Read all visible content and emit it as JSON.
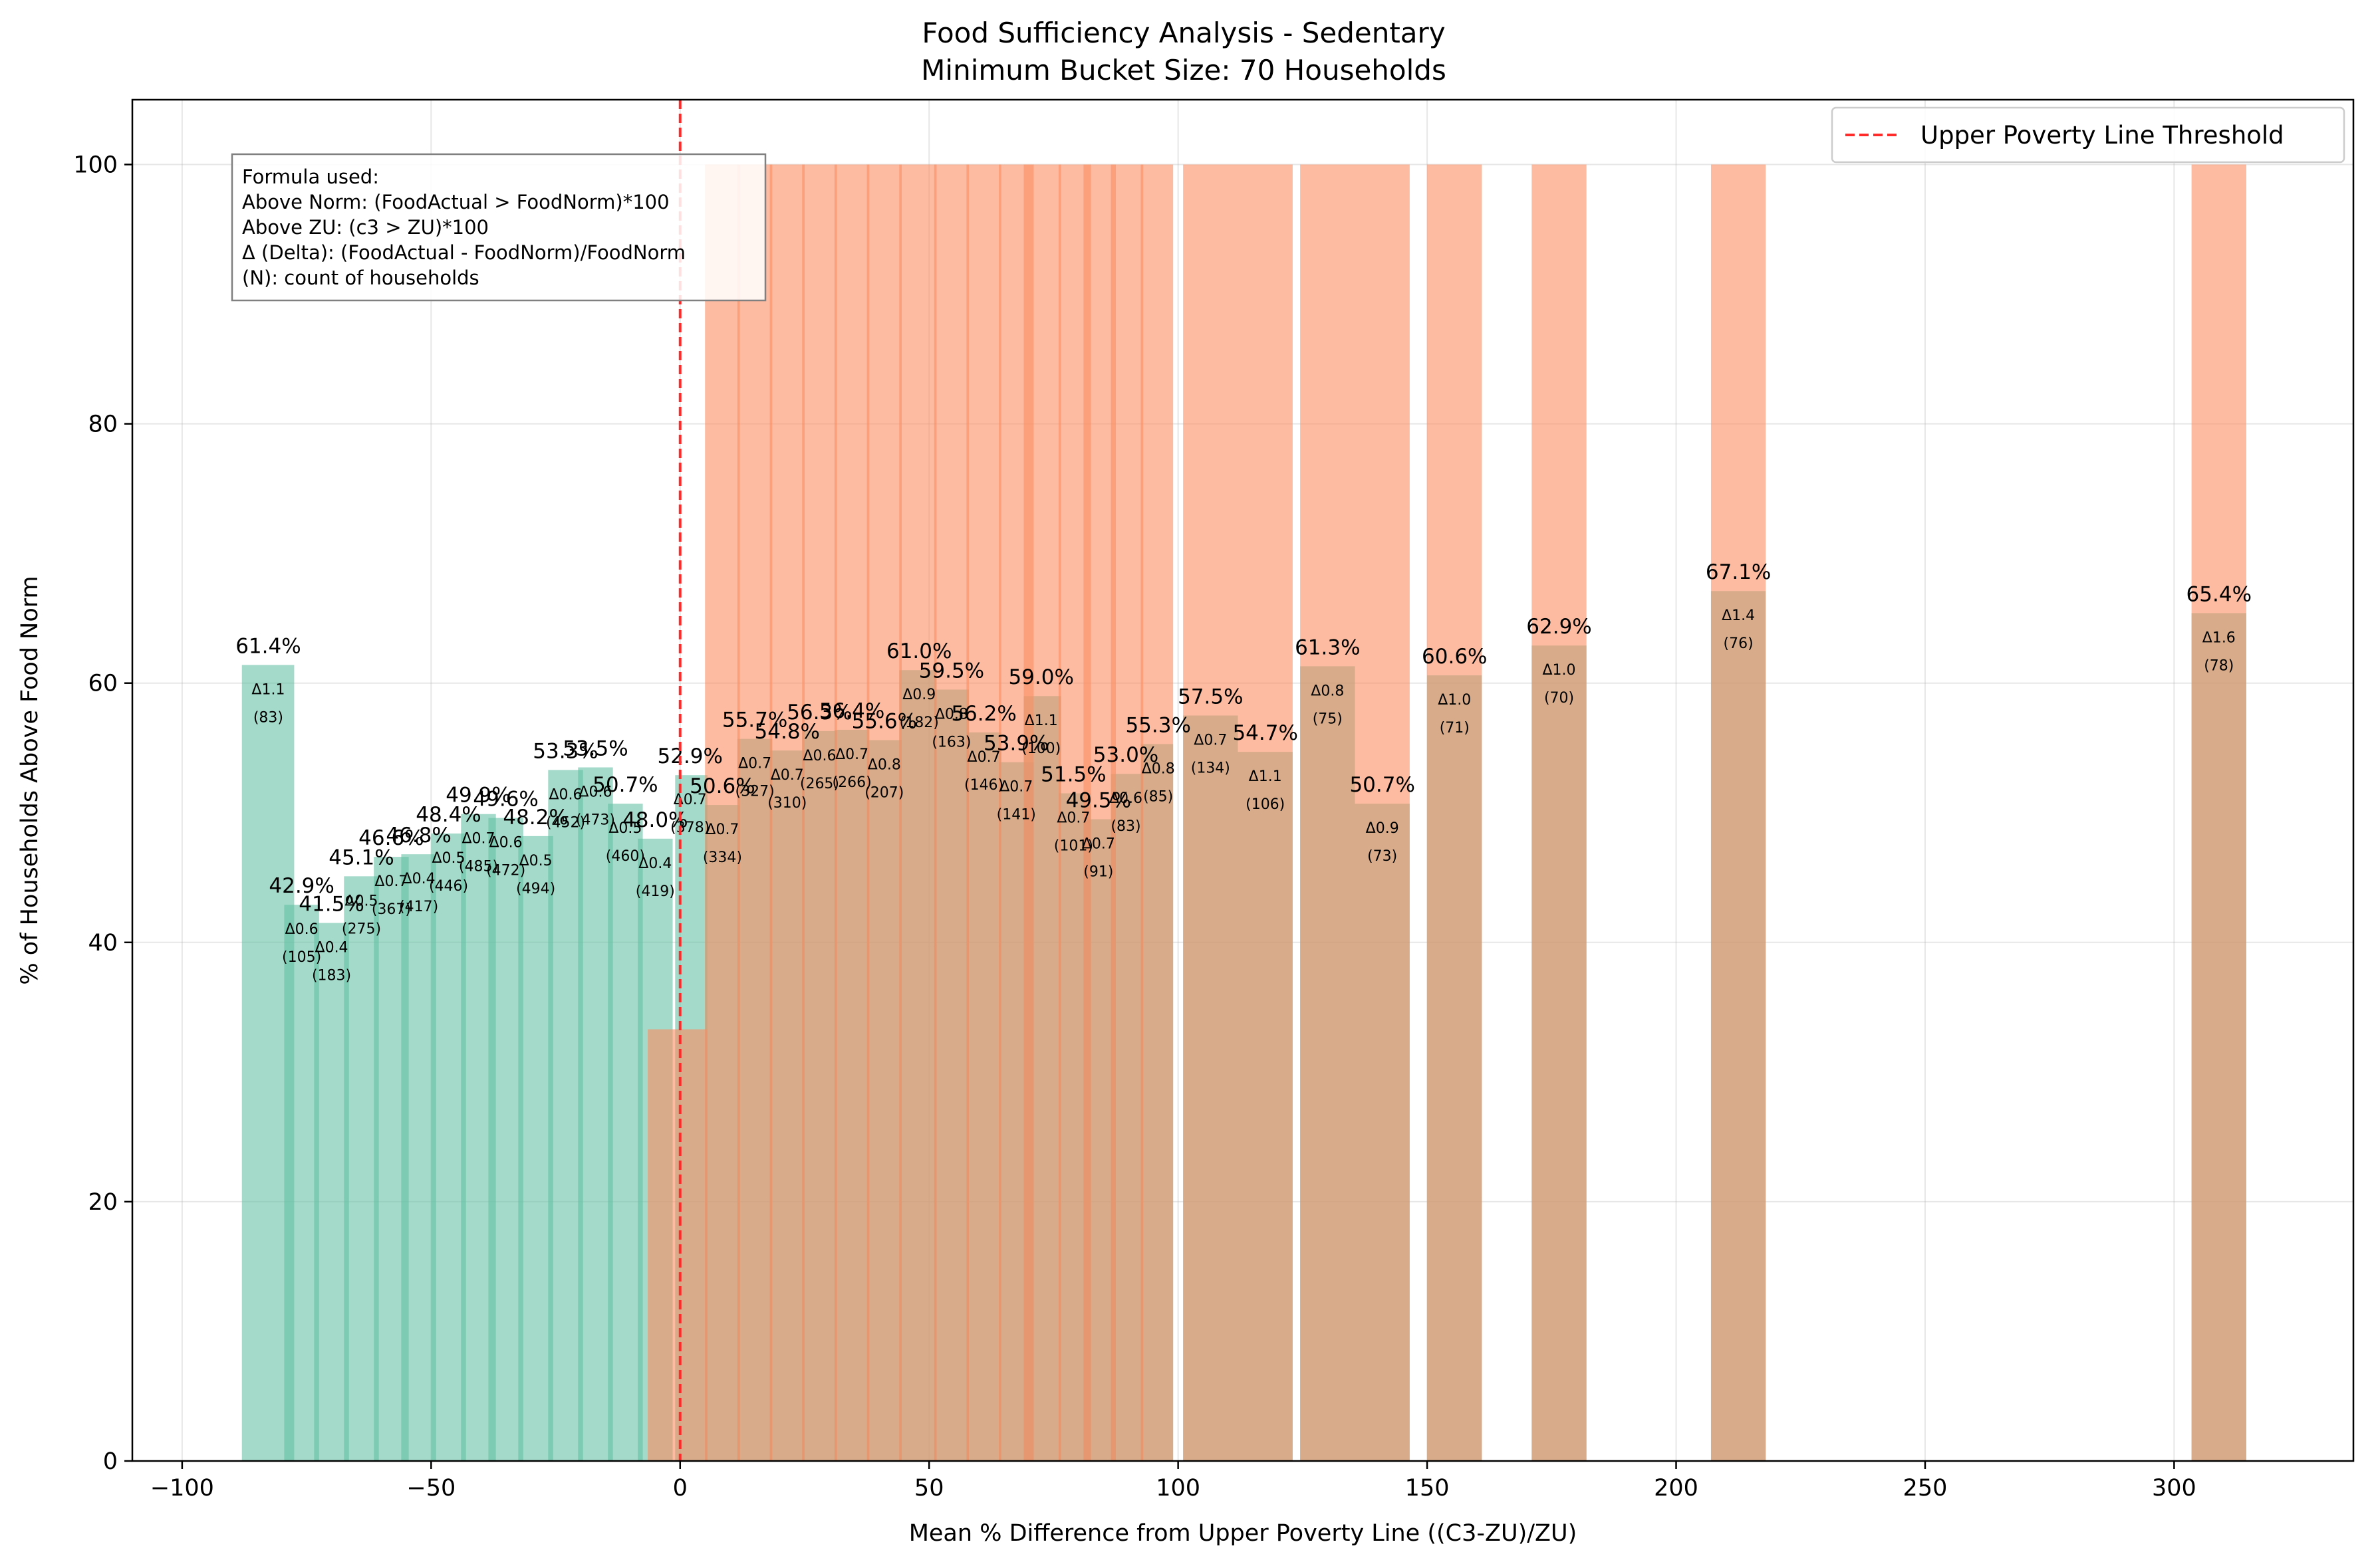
{
  "chart_data": {
    "type": "bar",
    "title": "Food Sufficiency Analysis - Sedentary",
    "subtitle": "Minimum Bucket Size: 70 Households",
    "xlabel": "Mean % Difference from Upper Poverty Line ((C3-ZU)/ZU)",
    "ylabel": "% of Households Above Food Norm",
    "xlim": [
      -110,
      336
    ],
    "ylim": [
      0,
      105
    ],
    "xticks": [
      -100,
      -50,
      0,
      50,
      100,
      150,
      200,
      250,
      300
    ],
    "xtick_labels": [
      "−100",
      "−50",
      "0",
      "50",
      "100",
      "150",
      "200",
      "250",
      "300"
    ],
    "yticks": [
      0,
      20,
      40,
      60,
      80,
      100
    ],
    "ytick_labels": [
      "0",
      "20",
      "40",
      "60",
      "80",
      "100"
    ],
    "grid": true,
    "legend_position": "top-right",
    "threshold": {
      "x": 0,
      "label": "Upper Poverty Line Threshold",
      "color": "#ff2b2b"
    },
    "formula_box": {
      "lines": [
        "Formula used:",
        "Above Norm: (FoodActual > FoodNorm)*100",
        "Above ZU: (c3 > ZU)*100",
        "Δ (Delta): (FoodActual - FoodNorm)/FoodNorm",
        "(N): count of households"
      ]
    },
    "colors": {
      "above_norm": "#66c2a5",
      "above_zu": "#fc8d62"
    },
    "series": [
      {
        "key": "above_norm",
        "points": [
          {
            "x": -82.7,
            "x0": -88.0,
            "x1": -77.5,
            "value": 61.4,
            "label": "61.4%",
            "delta": "Δ1.1",
            "n": "(83)"
          },
          {
            "x": -76.0,
            "x0": -79.5,
            "x1": -72.5,
            "value": 42.9,
            "label": "42.9%",
            "delta": "Δ0.6",
            "n": "(105)"
          },
          {
            "x": -70.0,
            "x0": -73.5,
            "x1": -66.5,
            "value": 41.5,
            "label": "41.5%",
            "delta": "Δ0.4",
            "n": "(183)"
          },
          {
            "x": -64.0,
            "x0": -67.5,
            "x1": -60.5,
            "value": 45.1,
            "label": "45.1%",
            "delta": "Δ0.5",
            "n": "(275)"
          },
          {
            "x": -58.0,
            "x0": -61.5,
            "x1": -54.5,
            "value": 46.6,
            "label": "46.6%",
            "delta": "Δ0.7",
            "n": "(367)"
          },
          {
            "x": -52.5,
            "x0": -56.0,
            "x1": -49.0,
            "value": 46.8,
            "label": "46.8%",
            "delta": "Δ0.4",
            "n": "(417)"
          },
          {
            "x": -46.5,
            "x0": -50.0,
            "x1": -43.0,
            "value": 48.4,
            "label": "48.4%",
            "delta": "Δ0.5",
            "n": "(446)"
          },
          {
            "x": -40.5,
            "x0": -44.0,
            "x1": -37.0,
            "value": 49.9,
            "label": "49.9%",
            "delta": "Δ0.7",
            "n": "(485)"
          },
          {
            "x": -35.0,
            "x0": -38.5,
            "x1": -31.5,
            "value": 49.6,
            "label": "49.6%",
            "delta": "Δ0.6",
            "n": "(472)"
          },
          {
            "x": -29.0,
            "x0": -32.5,
            "x1": -25.5,
            "value": 48.2,
            "label": "48.2%",
            "delta": "Δ0.5",
            "n": "(494)"
          },
          {
            "x": -23.0,
            "x0": -26.5,
            "x1": -19.5,
            "value": 53.3,
            "label": "53.3%",
            "delta": "Δ0.6",
            "n": "(452)"
          },
          {
            "x": -17.0,
            "x0": -20.5,
            "x1": -13.5,
            "value": 53.5,
            "label": "53.5%",
            "delta": "Δ0.6",
            "n": "(473)"
          },
          {
            "x": -11.0,
            "x0": -14.5,
            "x1": -7.5,
            "value": 50.7,
            "label": "50.7%",
            "delta": "Δ0.5",
            "n": "(460)"
          },
          {
            "x": -5.0,
            "x0": -8.5,
            "x1": -1.5,
            "value": 48.0,
            "label": "48.0%",
            "delta": "Δ0.4",
            "n": "(419)"
          },
          {
            "x": 2.0,
            "x0": -1.0,
            "x1": 5.5,
            "value": 52.9,
            "label": "52.9%",
            "delta": "Δ0.7",
            "n": "(378)"
          },
          {
            "x": 8.5,
            "x0": 5.0,
            "x1": 12.0,
            "value": 50.6,
            "label": "50.6%",
            "delta": "Δ0.7",
            "n": "(334)"
          },
          {
            "x": 15.0,
            "x0": 11.5,
            "x1": 18.5,
            "value": 55.7,
            "label": "55.7%",
            "delta": "Δ0.7",
            "n": "(327)"
          },
          {
            "x": 21.5,
            "x0": 18.0,
            "x1": 25.0,
            "value": 54.8,
            "label": "54.8%",
            "delta": "Δ0.7",
            "n": "(310)"
          },
          {
            "x": 28.0,
            "x0": 24.5,
            "x1": 31.5,
            "value": 56.3,
            "label": "56.3%",
            "delta": "Δ0.6",
            "n": "(265)"
          },
          {
            "x": 34.5,
            "x0": 31.0,
            "x1": 38.0,
            "value": 56.4,
            "label": "56.4%",
            "delta": "Δ0.7",
            "n": "(266)"
          },
          {
            "x": 41.0,
            "x0": 37.5,
            "x1": 44.5,
            "value": 55.6,
            "label": "55.6%",
            "delta": "Δ0.8",
            "n": "(207)"
          },
          {
            "x": 48.0,
            "x0": 44.0,
            "x1": 51.5,
            "value": 61.0,
            "label": "61.0%",
            "delta": "Δ0.9",
            "n": "(182)"
          },
          {
            "x": 54.5,
            "x0": 51.0,
            "x1": 58.0,
            "value": 59.5,
            "label": "59.5%",
            "delta": "Δ0.8",
            "n": "(163)"
          },
          {
            "x": 61.0,
            "x0": 57.5,
            "x1": 64.5,
            "value": 56.2,
            "label": "56.2%",
            "delta": "Δ0.7",
            "n": "(146)"
          },
          {
            "x": 67.5,
            "x0": 64.0,
            "x1": 71.0,
            "value": 53.9,
            "label": "53.9%",
            "delta": "Δ0.7",
            "n": "(141)"
          },
          {
            "x": 72.5,
            "x0": 69.0,
            "x1": 76.5,
            "value": 59.0,
            "label": "59.0%",
            "delta": "Δ1.1",
            "n": "(100)"
          },
          {
            "x": 79.0,
            "x0": 76.0,
            "x1": 82.5,
            "value": 51.5,
            "label": "51.5%",
            "delta": "Δ0.7",
            "n": "(101)"
          },
          {
            "x": 84.0,
            "x0": 81.0,
            "x1": 87.5,
            "value": 49.5,
            "label": "49.5%",
            "delta": "Δ0.7",
            "n": "(91)"
          },
          {
            "x": 89.5,
            "x0": 86.5,
            "x1": 93.0,
            "value": 53.0,
            "label": "53.0%",
            "delta": "Δ0.6",
            "n": "(83)"
          },
          {
            "x": 96.0,
            "x0": 92.5,
            "x1": 99.0,
            "value": 55.3,
            "label": "55.3%",
            "delta": "Δ0.8",
            "n": "(85)"
          },
          {
            "x": 106.5,
            "x0": 101.0,
            "x1": 112.0,
            "value": 57.5,
            "label": "57.5%",
            "delta": "Δ0.7",
            "n": "(134)"
          },
          {
            "x": 117.5,
            "x0": 112.0,
            "x1": 123.0,
            "value": 54.7,
            "label": "54.7%",
            "delta": "Δ1.1",
            "n": "(106)"
          },
          {
            "x": 130.0,
            "x0": 124.5,
            "x1": 135.5,
            "value": 61.3,
            "label": "61.3%",
            "delta": "Δ0.8",
            "n": "(75)"
          },
          {
            "x": 141.0,
            "x0": 135.5,
            "x1": 146.5,
            "value": 50.7,
            "label": "50.7%",
            "delta": "Δ0.9",
            "n": "(73)"
          },
          {
            "x": 155.5,
            "x0": 150.0,
            "x1": 161.0,
            "value": 60.6,
            "label": "60.6%",
            "delta": "Δ1.0",
            "n": "(71)"
          },
          {
            "x": 176.5,
            "x0": 171.0,
            "x1": 182.0,
            "value": 62.9,
            "label": "62.9%",
            "delta": "Δ1.0",
            "n": "(70)"
          },
          {
            "x": 212.5,
            "x0": 207.0,
            "x1": 218.0,
            "value": 67.1,
            "label": "67.1%",
            "delta": "Δ1.4",
            "n": "(76)"
          },
          {
            "x": 309.0,
            "x0": 303.5,
            "x1": 314.5,
            "value": 65.4,
            "label": "65.4%",
            "delta": "Δ1.6",
            "n": "(78)"
          }
        ]
      },
      {
        "key": "above_zu",
        "points": [
          {
            "x0": -6.5,
            "x1": 5.5,
            "value": 33.3
          },
          {
            "x0": 5.0,
            "x1": 12.0,
            "value": 100
          },
          {
            "x0": 11.5,
            "x1": 18.5,
            "value": 100
          },
          {
            "x0": 18.0,
            "x1": 25.0,
            "value": 100
          },
          {
            "x0": 24.5,
            "x1": 31.5,
            "value": 100
          },
          {
            "x0": 31.0,
            "x1": 38.0,
            "value": 100
          },
          {
            "x0": 37.5,
            "x1": 44.5,
            "value": 100
          },
          {
            "x0": 44.0,
            "x1": 51.5,
            "value": 100
          },
          {
            "x0": 51.0,
            "x1": 58.0,
            "value": 100
          },
          {
            "x0": 57.5,
            "x1": 64.5,
            "value": 100
          },
          {
            "x0": 64.0,
            "x1": 71.0,
            "value": 100
          },
          {
            "x0": 69.0,
            "x1": 76.5,
            "value": 100
          },
          {
            "x0": 76.0,
            "x1": 82.5,
            "value": 100
          },
          {
            "x0": 81.0,
            "x1": 87.5,
            "value": 100
          },
          {
            "x0": 86.5,
            "x1": 93.0,
            "value": 100
          },
          {
            "x0": 92.5,
            "x1": 99.0,
            "value": 100
          },
          {
            "x0": 101.0,
            "x1": 112.0,
            "value": 100
          },
          {
            "x0": 112.0,
            "x1": 123.0,
            "value": 100
          },
          {
            "x0": 124.5,
            "x1": 135.5,
            "value": 100
          },
          {
            "x0": 135.5,
            "x1": 146.5,
            "value": 100
          },
          {
            "x0": 150.0,
            "x1": 161.0,
            "value": 100
          },
          {
            "x0": 171.0,
            "x1": 182.0,
            "value": 100
          },
          {
            "x0": 207.0,
            "x1": 218.0,
            "value": 100
          },
          {
            "x0": 303.5,
            "x1": 314.5,
            "value": 100
          }
        ]
      }
    ]
  }
}
